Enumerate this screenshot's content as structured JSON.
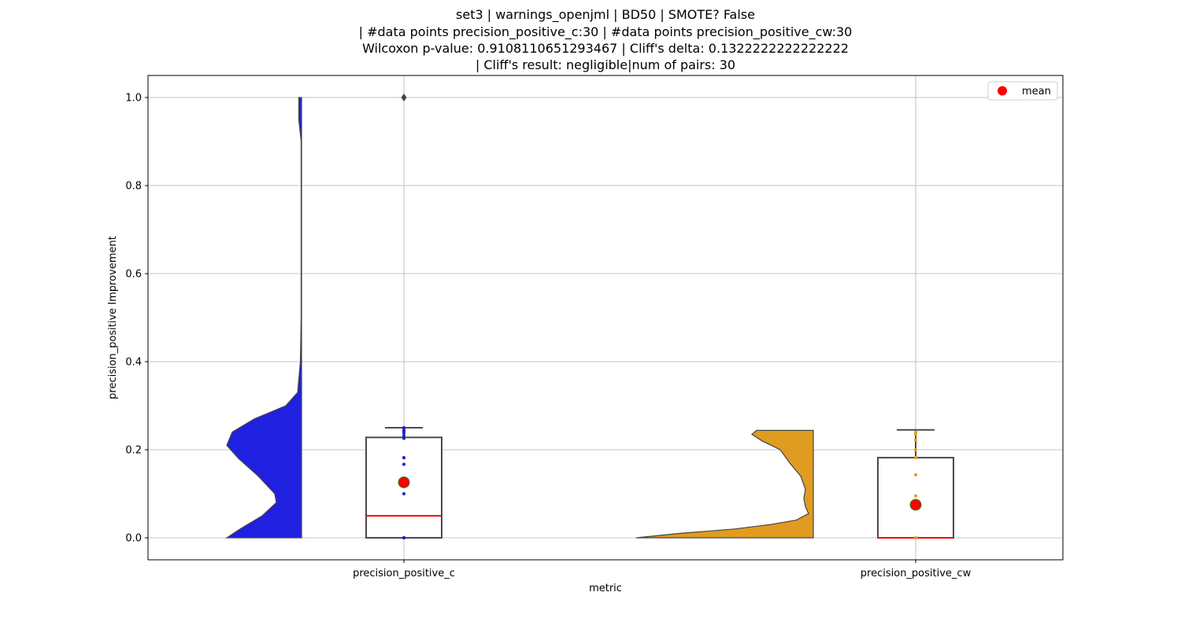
{
  "chart_data": {
    "type": "violin+box",
    "title_lines": [
      "set3 | warnings_openjml | BD50 | SMOTE? False",
      "| #data points precision_positive_c:30 | #data points precision_positive_cw:30",
      "Wilcoxon p-value: 0.9108110651293467 | Cliff's delta: 0.1322222222222222",
      "| Cliff's result: negligible|num of pairs: 30"
    ],
    "xlabel": "metric",
    "ylabel": "precision_positive Improvement",
    "categories": [
      "precision_positive_c",
      "precision_positive_cw"
    ],
    "ylim": [
      -0.05,
      1.05
    ],
    "yticks": [
      0.0,
      0.2,
      0.4,
      0.6,
      0.8,
      1.0
    ],
    "ytick_labels": [
      "0.0",
      "0.2",
      "0.4",
      "0.6",
      "0.8",
      "1.0"
    ],
    "grid": true,
    "legend": {
      "position": "top-right",
      "entries": [
        {
          "label": "mean",
          "color": "#ff0000"
        }
      ]
    },
    "series": [
      {
        "category": "precision_positive_c",
        "violin_color": "#2020e0",
        "violin_range": [
          0.0,
          1.0
        ],
        "violin_density": [
          [
            0.0,
            0.95
          ],
          [
            0.02,
            0.78
          ],
          [
            0.05,
            0.5
          ],
          [
            0.08,
            0.32
          ],
          [
            0.1,
            0.34
          ],
          [
            0.14,
            0.55
          ],
          [
            0.18,
            0.8
          ],
          [
            0.21,
            0.95
          ],
          [
            0.24,
            0.88
          ],
          [
            0.27,
            0.6
          ],
          [
            0.3,
            0.2
          ],
          [
            0.33,
            0.05
          ],
          [
            0.4,
            0.015
          ],
          [
            0.5,
            0.005
          ],
          [
            0.9,
            0.005
          ],
          [
            0.95,
            0.035
          ],
          [
            1.0,
            0.035
          ]
        ],
        "box": {
          "q1": 0.0,
          "median": 0.05,
          "q3": 0.228,
          "whisker_low": 0.0,
          "whisker_high": 0.25
        },
        "mean": 0.126,
        "outliers": [
          1.0
        ],
        "points": [
          0.0,
          0.0,
          0.0,
          0.1,
          0.167,
          0.182,
          0.182,
          0.226,
          0.232,
          0.238,
          0.242,
          0.245,
          0.25
        ],
        "point_color": "#2020c0"
      },
      {
        "category": "precision_positive_cw",
        "violin_color": "#e09c20",
        "violin_range": [
          0.0,
          0.244
        ],
        "violin_density": [
          [
            0.0,
            2.25
          ],
          [
            0.01,
            1.7
          ],
          [
            0.02,
            1.0
          ],
          [
            0.03,
            0.55
          ],
          [
            0.04,
            0.22
          ],
          [
            0.055,
            0.06
          ],
          [
            0.07,
            0.1
          ],
          [
            0.09,
            0.12
          ],
          [
            0.11,
            0.1
          ],
          [
            0.14,
            0.16
          ],
          [
            0.17,
            0.3
          ],
          [
            0.2,
            0.42
          ],
          [
            0.22,
            0.65
          ],
          [
            0.235,
            0.78
          ],
          [
            0.244,
            0.72
          ]
        ],
        "box": {
          "q1": 0.0,
          "median": 0.0,
          "q3": 0.182,
          "whisker_low": 0.0,
          "whisker_high": 0.245
        },
        "mean": 0.075,
        "outliers": [],
        "points": [
          0.0,
          0.0,
          0.095,
          0.143,
          0.182,
          0.182,
          0.2,
          0.222,
          0.235,
          0.24
        ],
        "point_color": "#e09c20"
      }
    ]
  }
}
